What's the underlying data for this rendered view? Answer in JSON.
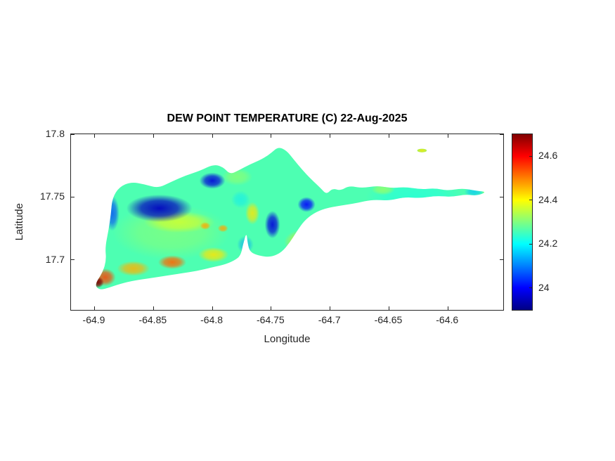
{
  "figure": {
    "title": "DEW POINT TEMPERATURE (C) 22-Aug-2025",
    "background_color": "#ffffff",
    "axis_color": "#262626"
  },
  "axes": {
    "xlabel": "Longitude",
    "ylabel": "Latitude",
    "xlim": [
      -64.92,
      -64.553
    ],
    "ylim": [
      17.66,
      17.8
    ],
    "x_ticks": [
      {
        "value": -64.9,
        "label": "-64.9"
      },
      {
        "value": -64.85,
        "label": "-64.85"
      },
      {
        "value": -64.8,
        "label": "-64.8"
      },
      {
        "value": -64.75,
        "label": "-64.75"
      },
      {
        "value": -64.7,
        "label": "-64.7"
      },
      {
        "value": -64.65,
        "label": "-64.65"
      },
      {
        "value": -64.6,
        "label": "-64.6"
      }
    ],
    "y_ticks": [
      {
        "value": 17.7,
        "label": "17.7"
      },
      {
        "value": 17.75,
        "label": "17.75"
      },
      {
        "value": 17.8,
        "label": "17.8"
      }
    ]
  },
  "colorbar": {
    "min": 23.9,
    "max": 24.7,
    "ticks": [
      {
        "value": 24,
        "label": "24"
      },
      {
        "value": 24.2,
        "label": "24.2"
      },
      {
        "value": 24.4,
        "label": "24.4"
      },
      {
        "value": 24.6,
        "label": "24.6"
      }
    ],
    "colormap": "jet",
    "colormap_stops": [
      {
        "t": 0,
        "color": "#000083"
      },
      {
        "t": 0.125,
        "color": "#0000ff"
      },
      {
        "t": 0.375,
        "color": "#00ffff"
      },
      {
        "t": 0.625,
        "color": "#ffff00"
      },
      {
        "t": 0.875,
        "color": "#ff0000"
      },
      {
        "t": 1,
        "color": "#800000"
      }
    ]
  },
  "chart_data": {
    "type": "heatmap",
    "title": "DEW POINT TEMPERATURE (C) 22-Aug-2025",
    "xlabel": "Longitude",
    "ylabel": "Latitude",
    "xlim": [
      -64.92,
      -64.553
    ],
    "ylim": [
      17.66,
      17.8
    ],
    "value_range": [
      23.9,
      24.7
    ],
    "base_value": 24.26,
    "island_outline": [
      [
        -64.9,
        17.68
      ],
      [
        -64.893,
        17.69
      ],
      [
        -64.89,
        17.7
      ],
      [
        -64.891,
        17.71
      ],
      [
        -64.888,
        17.724
      ],
      [
        -64.886,
        17.737
      ],
      [
        -64.885,
        17.749
      ],
      [
        -64.879,
        17.758
      ],
      [
        -64.869,
        17.762
      ],
      [
        -64.857,
        17.76
      ],
      [
        -64.846,
        17.757
      ],
      [
        -64.835,
        17.762
      ],
      [
        -64.823,
        17.767
      ],
      [
        -64.81,
        17.771
      ],
      [
        -64.799,
        17.776
      ],
      [
        -64.791,
        17.774
      ],
      [
        -64.785,
        17.768
      ],
      [
        -64.778,
        17.771
      ],
      [
        -64.768,
        17.776
      ],
      [
        -64.758,
        17.78
      ],
      [
        -64.75,
        17.785
      ],
      [
        -64.744,
        17.79
      ],
      [
        -64.737,
        17.787
      ],
      [
        -64.731,
        17.78
      ],
      [
        -64.724,
        17.772
      ],
      [
        -64.716,
        17.764
      ],
      [
        -64.708,
        17.757
      ],
      [
        -64.703,
        17.752
      ],
      [
        -64.698,
        17.757
      ],
      [
        -64.691,
        17.755
      ],
      [
        -64.684,
        17.759
      ],
      [
        -64.673,
        17.757
      ],
      [
        -64.66,
        17.759
      ],
      [
        -64.648,
        17.757
      ],
      [
        -64.636,
        17.758
      ],
      [
        -64.623,
        17.756
      ],
      [
        -64.611,
        17.757
      ],
      [
        -64.6,
        17.755
      ],
      [
        -64.588,
        17.757
      ],
      [
        -64.576,
        17.755
      ],
      [
        -64.567,
        17.754
      ],
      [
        -64.575,
        17.751
      ],
      [
        -64.585,
        17.752
      ],
      [
        -64.597,
        17.75
      ],
      [
        -64.61,
        17.751
      ],
      [
        -64.623,
        17.749
      ],
      [
        -64.637,
        17.75
      ],
      [
        -64.65,
        17.747
      ],
      [
        -64.664,
        17.748
      ],
      [
        -64.678,
        17.745
      ],
      [
        -64.692,
        17.743
      ],
      [
        -64.704,
        17.741
      ],
      [
        -64.714,
        17.737
      ],
      [
        -64.722,
        17.731
      ],
      [
        -64.728,
        17.723
      ],
      [
        -64.734,
        17.714
      ],
      [
        -64.741,
        17.706
      ],
      [
        -64.75,
        17.702
      ],
      [
        -64.76,
        17.703
      ],
      [
        -64.768,
        17.706
      ],
      [
        -64.77,
        17.713
      ],
      [
        -64.771,
        17.722
      ],
      [
        -64.774,
        17.712
      ],
      [
        -64.776,
        17.703
      ],
      [
        -64.782,
        17.699
      ],
      [
        -64.79,
        17.696
      ],
      [
        -64.8,
        17.694
      ],
      [
        -64.813,
        17.691
      ],
      [
        -64.827,
        17.689
      ],
      [
        -64.841,
        17.687
      ],
      [
        -64.855,
        17.685
      ],
      [
        -64.869,
        17.683
      ],
      [
        -64.881,
        17.68
      ],
      [
        -64.89,
        17.677
      ],
      [
        -64.896,
        17.676
      ]
    ],
    "buck_island": {
      "lon": -64.622,
      "lat": 17.787,
      "rx": 0.004,
      "ry": 0.0014,
      "value": 24.4
    },
    "features": [
      {
        "name": "warm-base-west",
        "lon": -64.835,
        "lat": 17.722,
        "rx": 0.05,
        "ry": 0.022,
        "value": 24.32,
        "alpha": 0.55
      },
      {
        "name": "cool-base-east",
        "lon": -64.628,
        "lat": 17.75,
        "rx": 0.042,
        "ry": 0.013,
        "value": 24.22,
        "alpha": 0.6
      },
      {
        "name": "yellow-band-midwest",
        "lon": -64.828,
        "lat": 17.73,
        "rx": 0.03,
        "ry": 0.0085,
        "value": 24.38,
        "alpha": 0.7
      },
      {
        "name": "green-north-central",
        "lon": -64.779,
        "lat": 17.766,
        "rx": 0.013,
        "ry": 0.007,
        "value": 24.33,
        "alpha": 0.55
      },
      {
        "name": "cyan-patch-central",
        "lon": -64.776,
        "lat": 17.748,
        "rx": 0.008,
        "ry": 0.007,
        "value": 24.18,
        "alpha": 0.5
      },
      {
        "name": "south-coast-yellow-east",
        "lon": -64.799,
        "lat": 17.704,
        "rx": 0.013,
        "ry": 0.006,
        "value": 24.42,
        "alpha": 0.85
      },
      {
        "name": "south-coast-orange",
        "lon": -64.834,
        "lat": 17.698,
        "rx": 0.012,
        "ry": 0.0055,
        "value": 24.52,
        "alpha": 0.9
      },
      {
        "name": "south-coast-yellow-west",
        "lon": -64.867,
        "lat": 17.693,
        "rx": 0.014,
        "ry": 0.006,
        "value": 24.46,
        "alpha": 0.85
      },
      {
        "name": "yellow-green-east-central",
        "lon": -64.693,
        "lat": 17.737,
        "rx": 0.013,
        "ry": 0.006,
        "value": 24.35,
        "alpha": 0.7
      },
      {
        "name": "yellow-green-east",
        "lon": -64.655,
        "lat": 17.756,
        "rx": 0.01,
        "ry": 0.0045,
        "value": 24.33,
        "alpha": 0.7
      },
      {
        "name": "yellow-west-of-cold-spot",
        "lon": -64.766,
        "lat": 17.737,
        "rx": 0.006,
        "ry": 0.009,
        "value": 24.42,
        "alpha": 0.8
      },
      {
        "name": "yellow-halo-south-central",
        "lon": -64.723,
        "lat": 17.714,
        "rx": 0.016,
        "ry": 0.01,
        "value": 24.42,
        "alpha": 0.7
      },
      {
        "name": "cyan-east-tip",
        "lon": -64.578,
        "lat": 17.754,
        "rx": 0.008,
        "ry": 0.004,
        "value": 24.15,
        "alpha": 0.65
      },
      {
        "name": "green-east-tip",
        "lon": -64.567,
        "lat": 17.754,
        "rx": 0.004,
        "ry": 0.0025,
        "value": 24.35,
        "alpha": 0.7
      },
      {
        "name": "cool-notch-area",
        "lon": -64.772,
        "lat": 17.712,
        "rx": 0.007,
        "ry": 0.007,
        "value": 24.12,
        "alpha": 0.55
      },
      {
        "name": "cool-west-coast",
        "lon": -64.885,
        "lat": 17.737,
        "rx": 0.006,
        "ry": 0.014,
        "value": 24.05,
        "alpha": 0.75
      },
      {
        "name": "cold-pool-northwest",
        "lon": -64.845,
        "lat": 17.741,
        "rx": 0.028,
        "ry": 0.011,
        "value": 23.95,
        "alpha": 0.95
      },
      {
        "name": "cold-spot-north",
        "lon": -64.8,
        "lat": 17.763,
        "rx": 0.011,
        "ry": 0.0065,
        "value": 23.97,
        "alpha": 0.9
      },
      {
        "name": "cold-spot-central",
        "lon": -64.749,
        "lat": 17.728,
        "rx": 0.0065,
        "ry": 0.011,
        "value": 23.97,
        "alpha": 0.9
      },
      {
        "name": "cold-spot-northeast",
        "lon": -64.72,
        "lat": 17.744,
        "rx": 0.0075,
        "ry": 0.006,
        "value": 24.0,
        "alpha": 0.9
      },
      {
        "name": "small-orange-west",
        "lon": -64.806,
        "lat": 17.727,
        "rx": 0.0045,
        "ry": 0.003,
        "value": 24.47,
        "alpha": 0.85
      },
      {
        "name": "small-orange-east",
        "lon": -64.791,
        "lat": 17.725,
        "rx": 0.0045,
        "ry": 0.003,
        "value": 24.47,
        "alpha": 0.85
      },
      {
        "name": "buck-island-warm",
        "lon": -64.622,
        "lat": 17.787,
        "rx": 0.006,
        "ry": 0.003,
        "value": 24.42,
        "alpha": 0.85
      },
      {
        "name": "orange-spot-south-central",
        "lon": -64.723,
        "lat": 17.713,
        "rx": 0.009,
        "ry": 0.0055,
        "value": 24.58,
        "alpha": 0.92
      },
      {
        "name": "orange-halo-southwest-tip",
        "lon": -64.891,
        "lat": 17.686,
        "rx": 0.009,
        "ry": 0.007,
        "value": 24.55,
        "alpha": 0.85
      },
      {
        "name": "red-southwest-tip",
        "lon": -64.897,
        "lat": 17.682,
        "rx": 0.005,
        "ry": 0.0045,
        "value": 24.7,
        "alpha": 0.95
      }
    ]
  }
}
